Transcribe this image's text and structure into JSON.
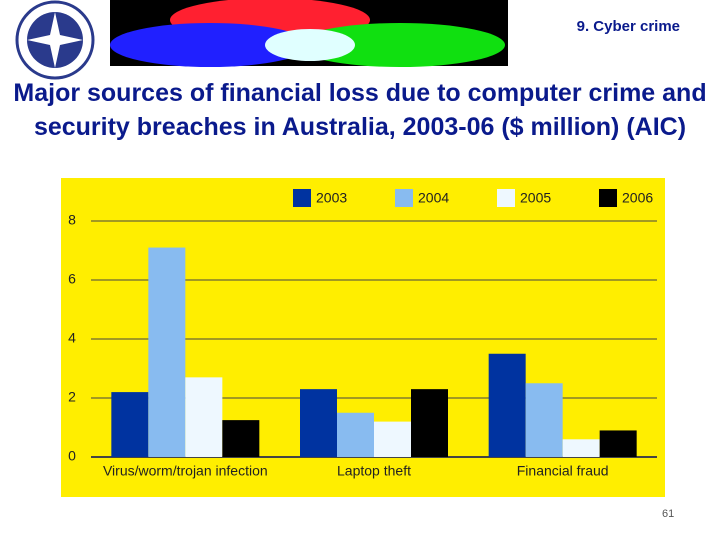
{
  "header": {
    "section": "9. Cyber crime"
  },
  "chart_data": {
    "type": "bar",
    "title": "Major sources of financial loss due to computer crime and security breaches in Australia, 2003-06 ($ million) (AIC)",
    "categories": [
      "Virus/worm/trojan infection",
      "Laptop theft",
      "Financial fraud"
    ],
    "series": [
      {
        "name": "2003",
        "color": "#0033a0",
        "values": [
          2.2,
          2.3,
          3.5
        ]
      },
      {
        "name": "2004",
        "color": "#88bbf0",
        "values": [
          7.1,
          1.5,
          2.5
        ]
      },
      {
        "name": "2005",
        "color": "#eef8ff",
        "values": [
          2.7,
          1.2,
          0.6
        ]
      },
      {
        "name": "2006",
        "color": "#000000",
        "values": [
          1.25,
          2.3,
          0.9
        ]
      }
    ],
    "ylim": [
      0,
      8
    ],
    "yticks": [
      0,
      2,
      4,
      6,
      8
    ],
    "grid": true,
    "legend": "top",
    "background": "#ffee00"
  },
  "footer": {
    "page": "61"
  }
}
